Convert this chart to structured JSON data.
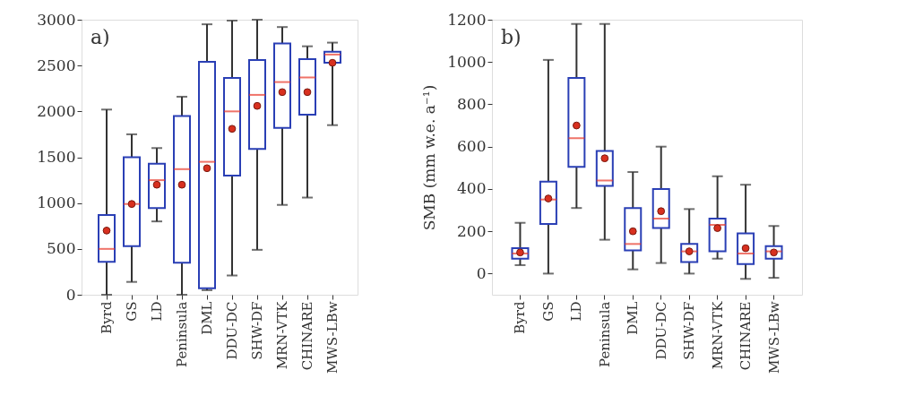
{
  "chart_data": [
    {
      "type": "box",
      "annotations": [
        "a)"
      ],
      "categories": [
        "Byrd",
        "GS",
        "LD",
        "Peninsula",
        "DML",
        "DDU-DC",
        "SHW-DF",
        "MRN-VTK",
        "CHINARE",
        "MWS-LBw"
      ],
      "ylim": [
        0,
        3000
      ],
      "yticks": [
        0,
        500,
        1000,
        1500,
        2000,
        2500,
        3000
      ],
      "grid": false,
      "series": [
        {
          "color": "#2a3fb5",
          "boxes": [
            {
              "low": 0,
              "q1": 360,
              "median": 500,
              "q3": 870,
              "high": 2020,
              "mean": 700
            },
            {
              "low": 140,
              "q1": 530,
              "median": 990,
              "q3": 1500,
              "high": 1750,
              "mean": 990
            },
            {
              "low": 800,
              "q1": 945,
              "median": 1250,
              "q3": 1430,
              "high": 1600,
              "mean": 1200
            },
            {
              "low": 0,
              "q1": 350,
              "median": 1370,
              "q3": 1950,
              "high": 2160,
              "mean": 1200
            },
            {
              "low": 50,
              "q1": 70,
              "median": 1450,
              "q3": 2540,
              "high": 2950,
              "mean": 1380
            },
            {
              "low": 210,
              "q1": 1300,
              "median": 2000,
              "q3": 2365,
              "high": 2990,
              "mean": 1810
            },
            {
              "low": 490,
              "q1": 1590,
              "median": 2180,
              "q3": 2560,
              "high": 3000,
              "mean": 2060
            },
            {
              "low": 980,
              "q1": 1820,
              "median": 2320,
              "q3": 2740,
              "high": 2920,
              "mean": 2210
            },
            {
              "low": 1060,
              "q1": 1965,
              "median": 2370,
              "q3": 2570,
              "high": 2710,
              "mean": 2210
            },
            {
              "low": 1850,
              "q1": 2530,
              "median": 2620,
              "q3": 2650,
              "high": 2750,
              "mean": 2530
            }
          ]
        }
      ]
    },
    {
      "type": "box",
      "annotations": [
        "b)"
      ],
      "ylabel": "SMB (mm w.e. a⁻¹)",
      "categories": [
        "Byrd",
        "GS",
        "LD",
        "Peninsula",
        "DML",
        "DDU-DC",
        "SHW-DF",
        "MRN-VTK",
        "CHINARE",
        "MWS-LBw"
      ],
      "ylim": [
        -100,
        1200
      ],
      "yticks": [
        0,
        200,
        400,
        600,
        800,
        1000,
        1200
      ],
      "grid": false,
      "series": [
        {
          "color": "#2a3fb5",
          "boxes": [
            {
              "low": 40,
              "q1": 70,
              "median": 95,
              "q3": 120,
              "high": 240,
              "mean": 100
            },
            {
              "low": 0,
              "q1": 235,
              "median": 350,
              "q3": 435,
              "high": 1010,
              "mean": 355
            },
            {
              "low": 310,
              "q1": 505,
              "median": 640,
              "q3": 925,
              "high": 1180,
              "mean": 700
            },
            {
              "low": 160,
              "q1": 415,
              "median": 440,
              "q3": 580,
              "high": 1180,
              "mean": 545
            },
            {
              "low": 20,
              "q1": 110,
              "median": 140,
              "q3": 310,
              "high": 480,
              "mean": 200
            },
            {
              "low": 50,
              "q1": 215,
              "median": 260,
              "q3": 400,
              "high": 600,
              "mean": 295
            },
            {
              "low": 0,
              "q1": 55,
              "median": 105,
              "q3": 140,
              "high": 305,
              "mean": 105
            },
            {
              "low": 70,
              "q1": 105,
              "median": 230,
              "q3": 260,
              "high": 460,
              "mean": 215
            },
            {
              "low": -25,
              "q1": 45,
              "median": 95,
              "q3": 190,
              "high": 420,
              "mean": 120
            },
            {
              "low": -20,
              "q1": 70,
              "median": 105,
              "q3": 130,
              "high": 225,
              "mean": 100
            }
          ]
        }
      ]
    }
  ]
}
